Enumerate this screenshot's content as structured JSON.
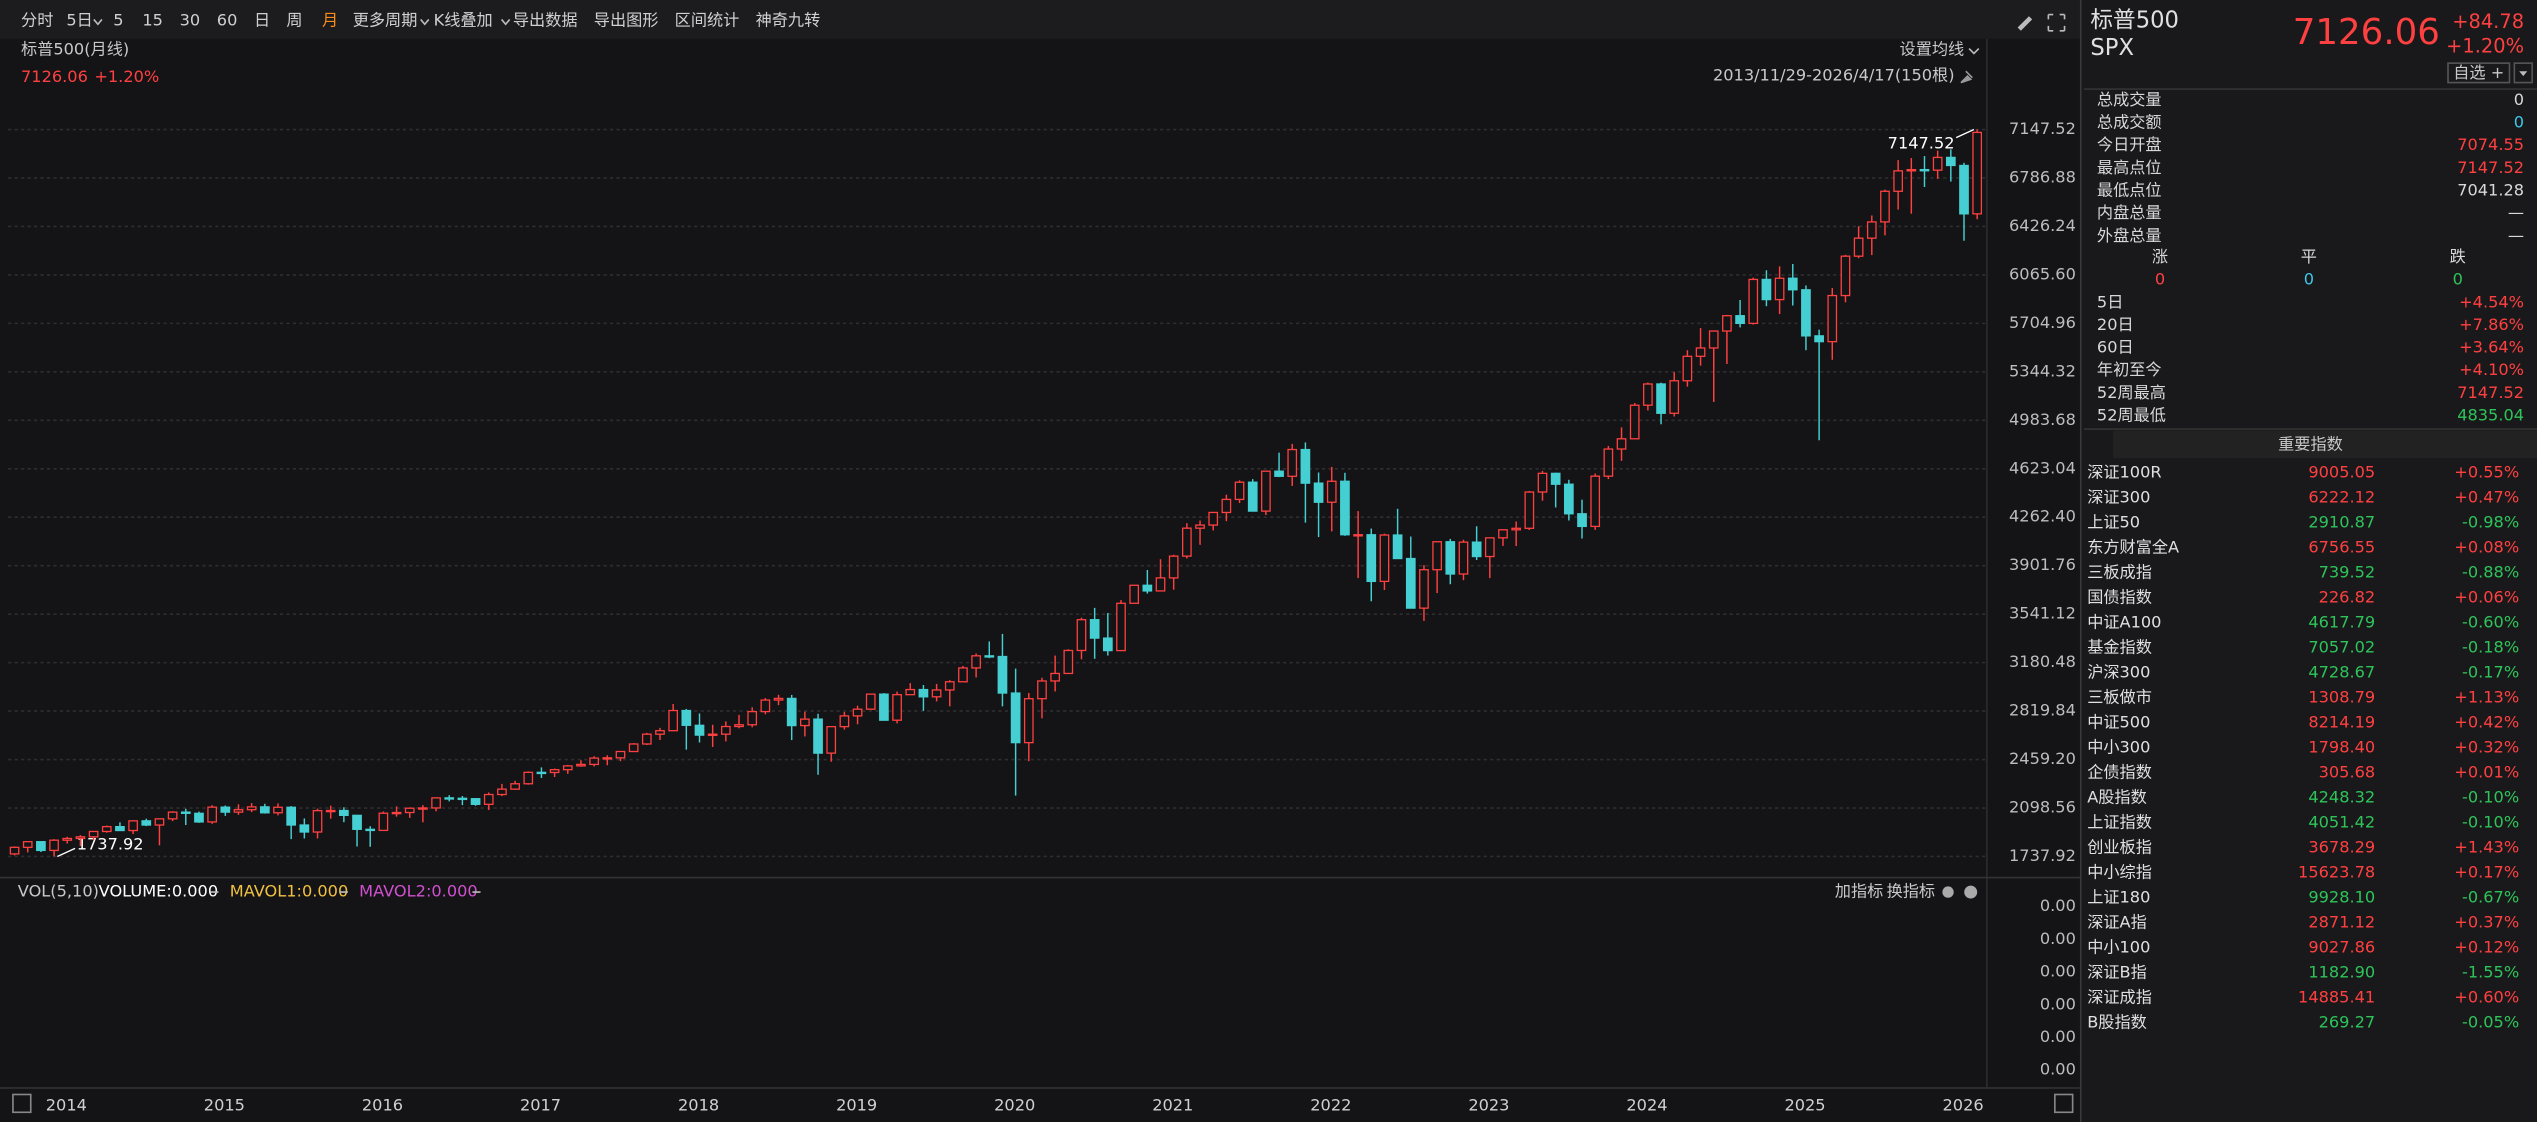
{
  "toolbar": {
    "items": [
      "分时",
      "5日",
      "5",
      "15",
      "30",
      "60",
      "日",
      "周",
      "月",
      "更多周期",
      "K线叠加",
      "导出数据",
      "导出图形",
      "区间统计",
      "神奇九转"
    ],
    "active": 8
  },
  "chart_data": {
    "type": "candlestick",
    "title": "标普500(月线)",
    "change": "+1.20%",
    "ma_setting": "设置均线",
    "range": "2013/11/29-2026/4/17(150根)",
    "up_color": "#ff4040",
    "down_color": "#45cfd2",
    "grid": true,
    "ylim": [
      1737.92,
      7147.52
    ],
    "yticks": [
      1737.92,
      2098.56,
      {
        "value": 2459.2,
        "label": "2459.20"
      },
      2819.84,
      3180.48,
      3541.12,
      3901.76,
      {
        "value": 4262.4,
        "label": "4262.40"
      },
      4623.04,
      4983.68,
      5344.32,
      5704.96,
      {
        "value": 6065.6,
        "label": "6065.60"
      },
      6426.24,
      6786.88,
      7147.52
    ],
    "categories": [
      null,
      null,
      "2014",
      null,
      null,
      null,
      null,
      null,
      null,
      null,
      null,
      null,
      null,
      null,
      "2015",
      null,
      null,
      null,
      null,
      null,
      null,
      null,
      null,
      null,
      null,
      null,
      "2016",
      null,
      null,
      null,
      null,
      null,
      null,
      null,
      null,
      null,
      null,
      null,
      "2017",
      null,
      null,
      null,
      null,
      null,
      null,
      null,
      null,
      null,
      null,
      null,
      "2018",
      null,
      null,
      null,
      null,
      null,
      null,
      null,
      null,
      null,
      null,
      null,
      "2019",
      null,
      null,
      null,
      null,
      null,
      null,
      null,
      null,
      null,
      null,
      null,
      "2020",
      null,
      null,
      null,
      null,
      null,
      null,
      null,
      null,
      null,
      null,
      null,
      "2021",
      null,
      null,
      null,
      null,
      null,
      null,
      null,
      null,
      null,
      null,
      null,
      "2022",
      null,
      null,
      null,
      null,
      null,
      null,
      null,
      null,
      null,
      null,
      null,
      "2023",
      null,
      null,
      null,
      null,
      null,
      null,
      null,
      null,
      null,
      null,
      null,
      "2024",
      null,
      null,
      null,
      null,
      null,
      null,
      null,
      null,
      null,
      null,
      null,
      "2025",
      null,
      null,
      null,
      null,
      null,
      null,
      null,
      null,
      null,
      null,
      null,
      "2026",
      null,
      null,
      null
    ],
    "candles": [
      [
        1757,
        1813,
        1746,
        1806
      ],
      [
        1806,
        1849,
        1768,
        1848
      ],
      [
        1848,
        1850,
        1771,
        1783
      ],
      [
        1783,
        1867,
        1737.92,
        1859
      ],
      [
        1859,
        1884,
        1834,
        1872
      ],
      [
        1872,
        1897,
        1815,
        1884
      ],
      [
        1884,
        1925,
        1860,
        1924
      ],
      [
        1924,
        1968,
        1915,
        1960
      ],
      [
        1960,
        1992,
        1931,
        1931
      ],
      [
        1931,
        2005,
        1905,
        2003
      ],
      [
        2003,
        2019,
        1964,
        1972
      ],
      [
        1972,
        2018,
        1821,
        2018
      ],
      [
        2018,
        2075,
        2001,
        2068
      ],
      [
        2068,
        2093,
        1972,
        2059
      ],
      [
        2059,
        2072,
        1988,
        1995
      ],
      [
        1995,
        2120,
        1981,
        2105
      ],
      [
        2105,
        2117,
        2040,
        2068
      ],
      [
        2068,
        2126,
        2048,
        2086
      ],
      [
        2086,
        2135,
        2068,
        2107
      ],
      [
        2107,
        2130,
        2057,
        2063
      ],
      [
        2063,
        2133,
        2044,
        2104
      ],
      [
        2104,
        2113,
        1867,
        1972
      ],
      [
        1972,
        2021,
        1872,
        1920
      ],
      [
        1920,
        2094,
        1872,
        2079
      ],
      [
        2079,
        2116,
        2019,
        2080
      ],
      [
        2080,
        2104,
        1993,
        2044
      ],
      [
        2044,
        2044,
        1812,
        1940
      ],
      [
        1940,
        1963,
        1810,
        1932
      ],
      [
        1932,
        2073,
        1931,
        2060
      ],
      [
        2060,
        2111,
        2034,
        2065
      ],
      [
        2065,
        2103,
        2025,
        2097
      ],
      [
        2097,
        2120,
        1992,
        2099
      ],
      [
        2099,
        2178,
        2074,
        2174
      ],
      [
        2174,
        2194,
        2148,
        2171
      ],
      [
        2171,
        2188,
        2120,
        2168
      ],
      [
        2168,
        2170,
        2115,
        2126
      ],
      [
        2126,
        2214,
        2084,
        2199
      ],
      [
        2199,
        2278,
        2187,
        2239
      ],
      [
        2239,
        2301,
        2234,
        2279
      ],
      [
        2279,
        2371,
        2272,
        2364
      ],
      [
        2364,
        2401,
        2322,
        2363
      ],
      [
        2363,
        2392,
        2329,
        2384
      ],
      [
        2384,
        2419,
        2353,
        2412
      ],
      [
        2412,
        2454,
        2405,
        2423
      ],
      [
        2423,
        2484,
        2407,
        2470
      ],
      [
        2470,
        2491,
        2417,
        2472
      ],
      [
        2472,
        2519,
        2447,
        2519
      ],
      [
        2519,
        2582,
        2515,
        2575
      ],
      [
        2575,
        2658,
        2567,
        2648
      ],
      [
        2648,
        2695,
        2605,
        2674
      ],
      [
        2674,
        2873,
        2673,
        2824
      ],
      [
        2824,
        2836,
        2533,
        2714
      ],
      [
        2714,
        2802,
        2586,
        2641
      ],
      [
        2641,
        2718,
        2553,
        2648
      ],
      [
        2648,
        2743,
        2594,
        2705
      ],
      [
        2705,
        2792,
        2692,
        2718
      ],
      [
        2718,
        2848,
        2699,
        2816
      ],
      [
        2816,
        2917,
        2796,
        2902
      ],
      [
        2902,
        2941,
        2864,
        2914
      ],
      [
        2914,
        2940,
        2604,
        2712
      ],
      [
        2712,
        2816,
        2631,
        2760
      ],
      [
        2760,
        2800,
        2346,
        2507
      ],
      [
        2507,
        2708,
        2443,
        2704
      ],
      [
        2704,
        2813,
        2682,
        2784
      ],
      [
        2784,
        2860,
        2722,
        2834
      ],
      [
        2834,
        2949,
        2830,
        2946
      ],
      [
        2946,
        2954,
        2750,
        2752
      ],
      [
        2752,
        2965,
        2728,
        2942
      ],
      [
        2942,
        3028,
        2940,
        2980
      ],
      [
        2980,
        3014,
        2822,
        2926
      ],
      [
        2926,
        3022,
        2892,
        2977
      ],
      [
        2977,
        3050,
        2855,
        3038
      ],
      [
        3038,
        3156,
        3036,
        3141
      ],
      [
        3141,
        3248,
        3070,
        3231
      ],
      [
        3231,
        3338,
        3214,
        3226
      ],
      [
        3226,
        3394,
        2855,
        2954
      ],
      [
        2954,
        3136,
        2191,
        2585
      ],
      [
        2585,
        2955,
        2447,
        2912
      ],
      [
        2912,
        3068,
        2766,
        3044
      ],
      [
        3044,
        3233,
        2966,
        3100
      ],
      [
        3100,
        3280,
        3098,
        3271
      ],
      [
        3271,
        3515,
        3205,
        3500
      ],
      [
        3500,
        3588,
        3209,
        3363
      ],
      [
        3363,
        3550,
        3233,
        3270
      ],
      [
        3270,
        3646,
        3268,
        3622
      ],
      [
        3622,
        3760,
        3620,
        3756
      ],
      [
        3756,
        3870,
        3694,
        3714
      ],
      [
        3714,
        3950,
        3712,
        3811
      ],
      [
        3811,
        3983,
        3723,
        3973
      ],
      [
        3973,
        4218,
        3955,
        4181
      ],
      [
        4181,
        4238,
        4057,
        4204
      ],
      [
        4204,
        4302,
        4164,
        4298
      ],
      [
        4298,
        4430,
        4233,
        4395
      ],
      [
        4395,
        4537,
        4368,
        4523
      ],
      [
        4523,
        4546,
        4306,
        4308
      ],
      [
        4308,
        4608,
        4279,
        4605
      ],
      [
        4605,
        4743,
        4561,
        4567
      ],
      [
        4567,
        4808,
        4495,
        4766
      ],
      [
        4766,
        4819,
        4222,
        4516
      ],
      [
        4516,
        4595,
        4115,
        4374
      ],
      [
        4374,
        4637,
        4157,
        4530
      ],
      [
        4530,
        4593,
        4124,
        4132
      ],
      [
        4132,
        4308,
        3810,
        4132
      ],
      [
        4132,
        4178,
        3637,
        3785
      ],
      [
        3785,
        4140,
        3721,
        4130
      ],
      [
        4130,
        4325,
        3955,
        3955
      ],
      [
        3955,
        4119,
        3584,
        3586
      ],
      [
        3586,
        3906,
        3491,
        3872
      ],
      [
        3872,
        4080,
        3698,
        4080
      ],
      [
        4080,
        4101,
        3764,
        3840
      ],
      [
        3840,
        4095,
        3794,
        4077
      ],
      [
        4077,
        4195,
        3944,
        3970
      ],
      [
        3970,
        4110,
        3809,
        4109
      ],
      [
        4109,
        4170,
        4049,
        4169
      ],
      [
        4169,
        4231,
        4048,
        4180
      ],
      [
        4180,
        4458,
        4167,
        4450
      ],
      [
        4450,
        4607,
        4385,
        4589
      ],
      [
        4589,
        4594,
        4335,
        4508
      ],
      [
        4508,
        4541,
        4238,
        4288
      ],
      [
        4288,
        4393,
        4104,
        4194
      ],
      [
        4194,
        4588,
        4168,
        4568
      ],
      [
        4568,
        4793,
        4546,
        4770
      ],
      [
        4770,
        4931,
        4682,
        4846
      ],
      [
        4846,
        5112,
        4845,
        5096
      ],
      [
        5096,
        5265,
        5057,
        5254
      ],
      [
        5254,
        5264,
        4954,
        5036
      ],
      [
        5036,
        5342,
        5012,
        5278
      ],
      [
        5278,
        5505,
        5234,
        5460
      ],
      [
        5460,
        5670,
        5390,
        5522
      ],
      [
        5522,
        5651,
        5120,
        5648
      ],
      [
        5648,
        5768,
        5403,
        5762
      ],
      [
        5762,
        5879,
        5675,
        5705
      ],
      [
        5705,
        6045,
        5696,
        6032
      ],
      [
        6032,
        6100,
        5833,
        5882
      ],
      [
        5882,
        6129,
        5774,
        6041
      ],
      [
        6041,
        6147,
        5838,
        5955
      ],
      [
        5955,
        5987,
        5505,
        5612
      ],
      [
        5612,
        5658,
        4835.04,
        5569
      ],
      [
        5569,
        5968,
        5434,
        5912
      ],
      [
        5912,
        6215,
        5862,
        6205
      ],
      [
        6205,
        6428,
        6190,
        6339
      ],
      [
        6339,
        6508,
        6213,
        6460
      ],
      [
        6460,
        6700,
        6360,
        6688
      ],
      [
        6688,
        6920,
        6552,
        6840
      ],
      [
        6840,
        6935,
        6521,
        6849
      ],
      [
        6849,
        6950,
        6720,
        6845
      ],
      [
        6845,
        6990,
        6780,
        6940
      ],
      [
        6940,
        7000,
        6760,
        6880
      ],
      [
        6880,
        6900,
        6320,
        6520
      ],
      [
        6520,
        7147.52,
        6480,
        7126.06
      ]
    ]
  },
  "volume_panel": {
    "title": "VOL(5,10)",
    "volume": "VOLUME:0.000",
    "mavol1": "MAVOL1:0.000",
    "mavol2": "MAVOL2:0.000",
    "add": "加指标",
    "change": "换指标",
    "axis_labels": [
      "0.00",
      "0.00",
      "0.00",
      "0.00",
      "0.00",
      "0.00"
    ]
  },
  "sidebar": {
    "name": "标普500",
    "code": "SPX",
    "price": "7126.06",
    "change": "+84.78",
    "change_pct": "+1.20%",
    "watch": "自选 +",
    "stats": [
      [
        "总成交量",
        "0",
        "#d8d8d8"
      ],
      [
        "总成交额",
        "0",
        "#3fc6e8"
      ],
      [
        "今日开盘",
        "7074.55",
        "#ff4040"
      ],
      [
        "最高点位",
        "7147.52",
        "#ff4040"
      ],
      [
        "最低点位",
        "7041.28",
        "#d8d8d8"
      ],
      [
        "内盘总量",
        "—",
        "#d8d8d8"
      ],
      [
        "外盘总量",
        "—",
        "#d8d8d8"
      ]
    ],
    "breadth": [
      [
        "涨",
        "0",
        "#ff4040"
      ],
      [
        "平",
        "0",
        "#3fc6e8"
      ],
      [
        "跌",
        "0",
        "#2ec45a"
      ]
    ],
    "performance": [
      [
        "5日",
        "+4.54%",
        "#ff4040"
      ],
      [
        "20日",
        "+7.86%",
        "#ff4040"
      ],
      [
        "60日",
        "+3.64%",
        "#ff4040"
      ],
      [
        "年初至今",
        "+4.10%",
        "#ff4040"
      ],
      [
        "52周最高",
        "7147.52",
        "#ff4040"
      ],
      [
        "52周最低",
        "4835.04",
        "#2ec45a"
      ]
    ],
    "index_title": "重要指数",
    "indices": [
      [
        "深证100R",
        "9005.05",
        "+0.55%"
      ],
      [
        "深证300",
        "6222.12",
        "+0.47%"
      ],
      [
        "上证50",
        "2910.87",
        "-0.98%"
      ],
      [
        "东方财富全A",
        "6756.55",
        "+0.08%"
      ],
      [
        "三板成指",
        "739.52",
        "-0.88%"
      ],
      [
        "国债指数",
        "226.82",
        "+0.06%"
      ],
      [
        "中证A100",
        "4617.79",
        "-0.60%"
      ],
      [
        "基金指数",
        "7057.02",
        "-0.18%"
      ],
      [
        "沪深300",
        "4728.67",
        "-0.17%"
      ],
      [
        "三板做市",
        "1308.79",
        "+1.13%"
      ],
      [
        "中证500",
        "8214.19",
        "+0.42%"
      ],
      [
        "中小300",
        "1798.40",
        "+0.32%"
      ],
      [
        "企债指数",
        "305.68",
        "+0.01%"
      ],
      [
        "A股指数",
        "4248.32",
        "-0.10%"
      ],
      [
        "上证指数",
        "4051.42",
        "-0.10%"
      ],
      [
        "创业板指",
        "3678.29",
        "+1.43%"
      ],
      [
        "中小综指",
        "15623.78",
        "+0.17%"
      ],
      [
        "上证180",
        "9928.10",
        "-0.67%"
      ],
      [
        "深证A指",
        "2871.12",
        "+0.37%"
      ],
      [
        "中小100",
        "9027.86",
        "+0.12%"
      ],
      [
        "深证B指",
        "1182.90",
        "-1.55%"
      ],
      [
        "深证成指",
        "14885.41",
        "+0.60%"
      ],
      [
        "B股指数",
        "269.27",
        "-0.05%"
      ]
    ]
  }
}
